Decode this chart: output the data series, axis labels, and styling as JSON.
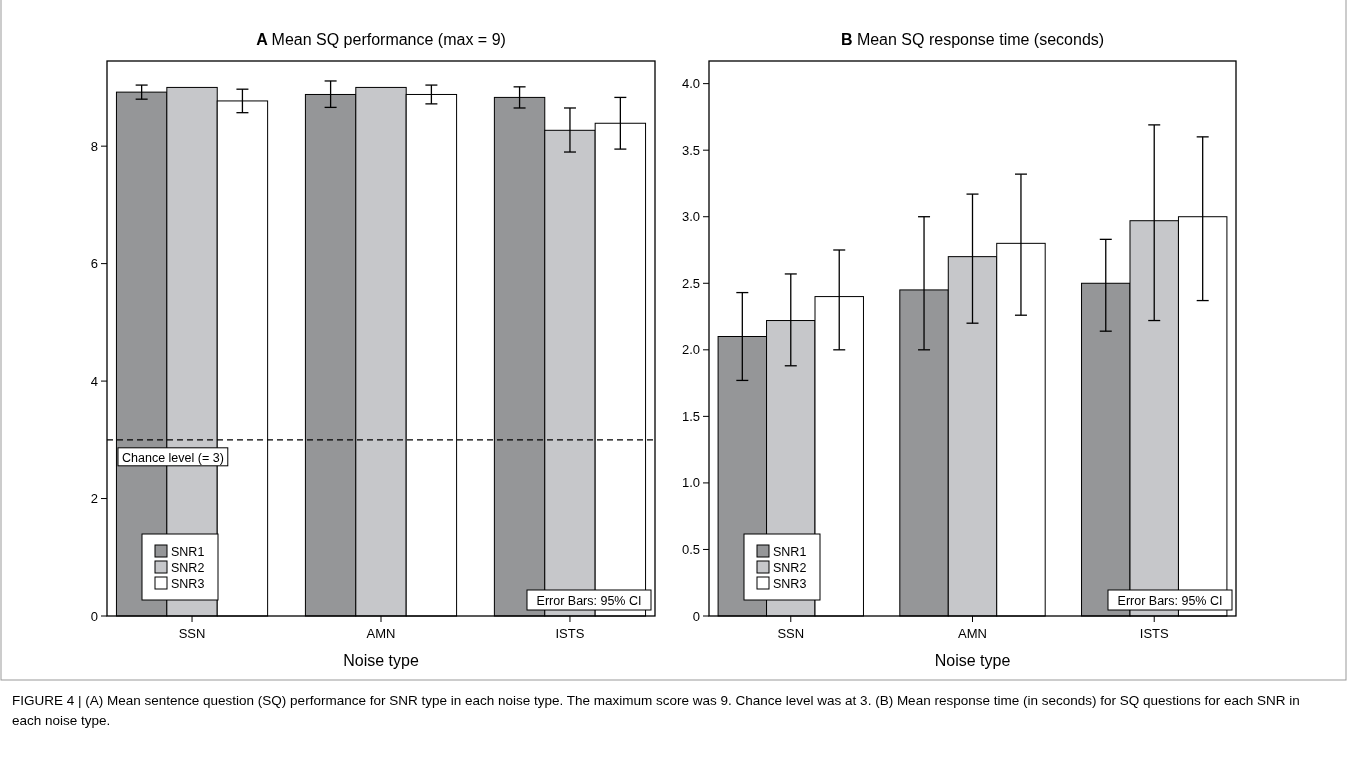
{
  "chart_data": [
    {
      "type": "bar",
      "title": "A Mean SQ performance (max = 9)",
      "xlabel": "Noise type",
      "categories": [
        "SSN",
        "AMN",
        "ISTS"
      ],
      "series": [
        {
          "name": "SNR1",
          "color": "#959698",
          "values": [
            8.92,
            8.88,
            8.83
          ],
          "errors": [
            [
              8.8,
              9.04
            ],
            [
              8.66,
              9.11
            ],
            [
              8.65,
              9.01
            ]
          ]
        },
        {
          "name": "SNR2",
          "color": "#c6c7ca",
          "values": [
            9,
            9,
            8.27
          ],
          "errors": [
            null,
            null,
            [
              7.9,
              8.65
            ]
          ]
        },
        {
          "name": "SNR3",
          "color": "#ffffff",
          "values": [
            8.77,
            8.88,
            8.39
          ],
          "errors": [
            [
              8.57,
              8.97
            ],
            [
              8.72,
              9.04
            ],
            [
              7.95,
              8.83
            ]
          ]
        }
      ],
      "ylim": [
        0,
        9.45
      ],
      "yticks": [
        0,
        2,
        4,
        6,
        8
      ],
      "legend": "bottom left",
      "ref_lines": [
        {
          "axis": "y",
          "value": 3,
          "label": "Chance level (= 3)",
          "line_style": "dashed"
        }
      ],
      "annotations": [
        "Error Bars: 95% CI",
        "FIGURE 4 | (A) Mean sentence question (SQ) performance for SNR type in each noise type. The maximum score was 9. Chance level was at 3. (B) Mean response time (in seconds) for SQ questions for each SNR in each noise type."
      ]
    },
    {
      "type": "bar",
      "title": "B Mean SQ response time (seconds)",
      "xlabel": "Noise type",
      "categories": [
        "SSN",
        "AMN",
        "ISTS"
      ],
      "series": [
        {
          "name": "SNR1",
          "color": "#959698",
          "values": [
            2.1,
            2.45,
            2.5
          ],
          "errors": [
            [
              1.77,
              2.43
            ],
            [
              2.0,
              3.0
            ],
            [
              2.14,
              2.83
            ]
          ]
        },
        {
          "name": "SNR2",
          "color": "#c6c7ca",
          "values": [
            2.22,
            2.7,
            2.97
          ],
          "errors": [
            [
              1.88,
              2.57
            ],
            [
              2.2,
              3.17
            ],
            [
              2.22,
              3.69
            ]
          ]
        },
        {
          "name": "SNR3",
          "color": "#ffffff",
          "values": [
            2.4,
            2.8,
            3.0
          ],
          "errors": [
            [
              2.0,
              2.75
            ],
            [
              2.26,
              3.32
            ],
            [
              2.37,
              3.6
            ]
          ]
        }
      ],
      "ylim": [
        0,
        4.17
      ],
      "yticks": [
        {
          "value": 0,
          "label": "0"
        },
        {
          "value": 0.5,
          "label": "0.5"
        },
        {
          "value": 1,
          "label": "1.0"
        },
        {
          "value": 1.5,
          "label": "1.5"
        },
        {
          "value": 2,
          "label": "2.0"
        },
        {
          "value": 2.5,
          "label": "2.5"
        },
        {
          "value": 3,
          "label": "3.0"
        },
        {
          "value": 3.5,
          "label": "3.5"
        },
        {
          "value": 4,
          "label": "4.0"
        }
      ],
      "legend": "bottom left",
      "annotations": [
        "Error Bars: 95% CI"
      ]
    }
  ]
}
